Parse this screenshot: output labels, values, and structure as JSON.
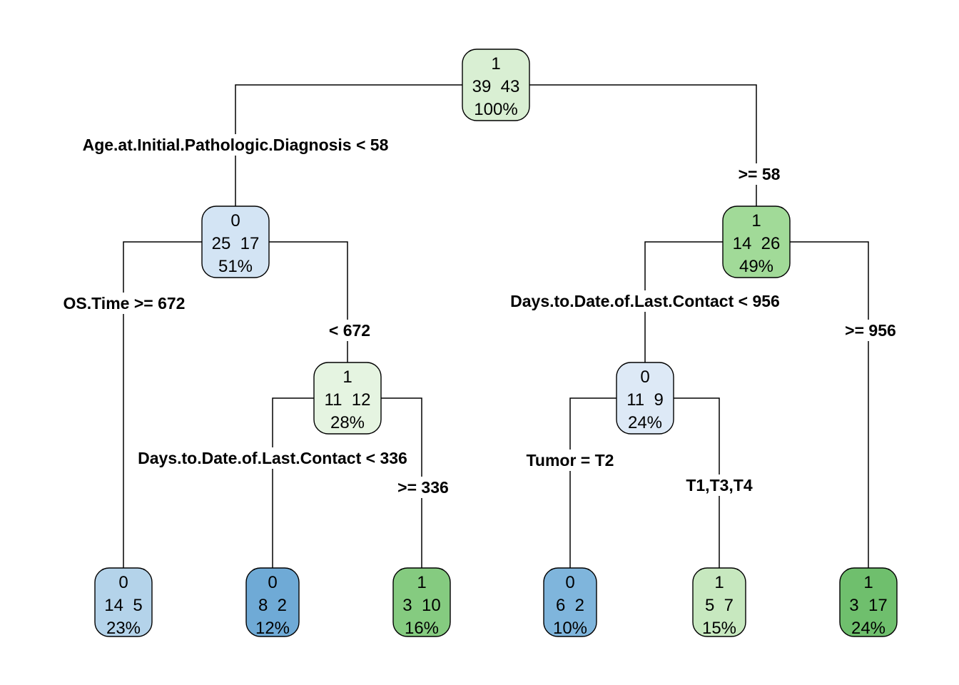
{
  "tree": {
    "nodes": [
      {
        "id": "root",
        "class": "1",
        "counts": "39  43",
        "percent": "100%",
        "color": "#d9efd3"
      },
      {
        "id": "n2",
        "class": "0",
        "counts": "25  17",
        "percent": "51%",
        "color": "#d3e4f4"
      },
      {
        "id": "n3",
        "class": "1",
        "counts": "14  26",
        "percent": "49%",
        "color": "#a1da98"
      },
      {
        "id": "n5",
        "class": "1",
        "counts": "11  12",
        "percent": "28%",
        "color": "#e5f4e1"
      },
      {
        "id": "n6",
        "class": "0",
        "counts": "11  9",
        "percent": "24%",
        "color": "#dde9f6"
      },
      {
        "id": "leaf1",
        "class": "0",
        "counts": "14  5",
        "percent": "23%",
        "color": "#b4d3ea"
      },
      {
        "id": "leaf2",
        "class": "0",
        "counts": "8  2",
        "percent": "12%",
        "color": "#6faad6"
      },
      {
        "id": "leaf3",
        "class": "1",
        "counts": "3  10",
        "percent": "16%",
        "color": "#85cb80"
      },
      {
        "id": "leaf4",
        "class": "0",
        "counts": "6  2",
        "percent": "10%",
        "color": "#7fb5dc"
      },
      {
        "id": "leaf5",
        "class": "1",
        "counts": "5  7",
        "percent": "15%",
        "color": "#c7e8bf"
      },
      {
        "id": "leaf6",
        "class": "1",
        "counts": "3  17",
        "percent": "24%",
        "color": "#6fbf6d"
      }
    ],
    "split_labels": [
      {
        "id": "s_root_left",
        "text": "Age.at.Initial.Pathologic.Diagnosis < 58"
      },
      {
        "id": "s_root_right",
        "text": ">= 58"
      },
      {
        "id": "s_n2_left",
        "text": "OS.Time >= 672"
      },
      {
        "id": "s_n2_right",
        "text": "< 672"
      },
      {
        "id": "s_n3_left",
        "text": "Days.to.Date.of.Last.Contact < 956"
      },
      {
        "id": "s_n3_right",
        "text": ">= 956"
      },
      {
        "id": "s_n5_left",
        "text": "Days.to.Date.of.Last.Contact < 336"
      },
      {
        "id": "s_n5_right",
        "text": ">= 336"
      },
      {
        "id": "s_n6_left",
        "text": "Tumor = T2"
      },
      {
        "id": "s_n6_right",
        "text": "T1,T3,T4"
      }
    ]
  }
}
